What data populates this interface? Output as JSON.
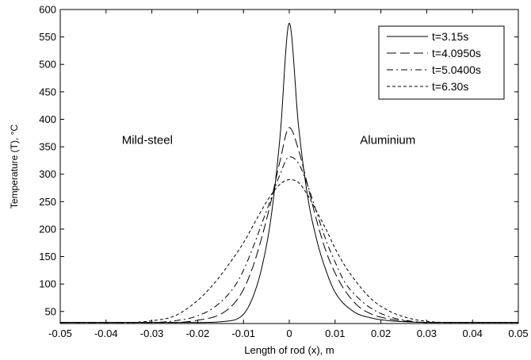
{
  "chart_data": {
    "type": "line",
    "title": "",
    "xlabel": "Length of rod (x), m",
    "ylabel": "Temperature (T), °C",
    "xlim": [
      -0.05,
      0.05
    ],
    "ylim": [
      28,
      600
    ],
    "xticks": [
      -0.05,
      -0.04,
      -0.03,
      -0.02,
      -0.01,
      0,
      0.01,
      0.02,
      0.03,
      0.04,
      0.05
    ],
    "xtick_labels": [
      "-0.05",
      "-0.04",
      "-0.03",
      "-0.02",
      "-0.01",
      "0",
      "0.01",
      "0.02",
      "0.03",
      "0.04",
      "0.05"
    ],
    "yticks": [
      50,
      100,
      150,
      200,
      250,
      300,
      350,
      400,
      450,
      500,
      550,
      600
    ],
    "ytick_labels": [
      "50",
      "100",
      "150",
      "200",
      "250",
      "300",
      "350",
      "400",
      "450",
      "500",
      "550",
      "600"
    ],
    "grid": false,
    "legend_position": "top-right",
    "annotations": [
      {
        "text": "Mild-steel",
        "x": -0.031,
        "y": 355
      },
      {
        "text": "Aluminium",
        "x": 0.0215,
        "y": 355
      }
    ],
    "series": [
      {
        "name": "t=3.15s",
        "style": "solid",
        "x": [
          -0.05,
          -0.02,
          -0.014,
          -0.01,
          -0.008,
          -0.006,
          -0.004,
          -0.002,
          0,
          0.002,
          0.004,
          0.006,
          0.008,
          0.01,
          0.014,
          0.018,
          0.022,
          0.026,
          0.03,
          0.05
        ],
        "y": [
          30,
          30,
          32,
          45,
          75,
          130,
          220,
          370,
          575,
          390,
          260,
          180,
          125,
          85,
          50,
          38,
          33,
          31,
          30,
          30
        ]
      },
      {
        "name": "t=4.0950s",
        "style": "long-dash",
        "x": [
          -0.05,
          -0.025,
          -0.02,
          -0.015,
          -0.012,
          -0.01,
          -0.008,
          -0.006,
          -0.004,
          -0.002,
          0,
          0.002,
          0.004,
          0.006,
          0.008,
          0.01,
          0.012,
          0.015,
          0.018,
          0.022,
          0.026,
          0.03,
          0.05
        ],
        "y": [
          30,
          30,
          34,
          45,
          65,
          90,
          130,
          185,
          250,
          325,
          385,
          345,
          280,
          215,
          160,
          120,
          90,
          60,
          45,
          36,
          32,
          30,
          30
        ]
      },
      {
        "name": "t=5.0400s",
        "style": "dash-dot",
        "x": [
          -0.05,
          -0.03,
          -0.025,
          -0.02,
          -0.016,
          -0.012,
          -0.01,
          -0.008,
          -0.006,
          -0.004,
          -0.002,
          0,
          0.002,
          0.004,
          0.006,
          0.008,
          0.01,
          0.012,
          0.015,
          0.018,
          0.022,
          0.026,
          0.03,
          0.05
        ],
        "y": [
          30,
          30,
          33,
          42,
          60,
          95,
          125,
          165,
          210,
          255,
          300,
          332,
          320,
          280,
          230,
          180,
          140,
          105,
          75,
          55,
          40,
          33,
          30,
          30
        ]
      },
      {
        "name": "t=6.30s",
        "style": "short-dash",
        "x": [
          -0.05,
          -0.035,
          -0.03,
          -0.025,
          -0.02,
          -0.016,
          -0.012,
          -0.01,
          -0.008,
          -0.006,
          -0.004,
          -0.002,
          0,
          0.002,
          0.004,
          0.006,
          0.008,
          0.01,
          0.012,
          0.015,
          0.018,
          0.022,
          0.026,
          0.03,
          0.035,
          0.05
        ],
        "y": [
          30,
          30,
          33,
          42,
          70,
          105,
          150,
          175,
          205,
          235,
          262,
          282,
          290,
          285,
          262,
          232,
          200,
          165,
          135,
          100,
          72,
          50,
          38,
          32,
          30,
          30
        ]
      }
    ]
  }
}
